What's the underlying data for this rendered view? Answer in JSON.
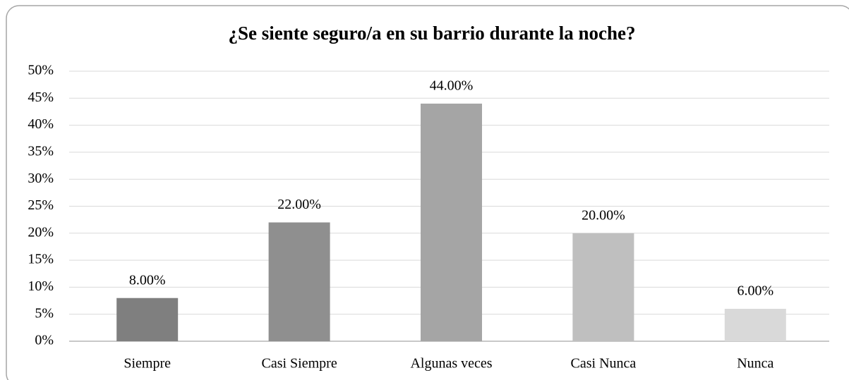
{
  "chart_data": {
    "type": "bar",
    "title": "¿Se siente seguro/a en su barrio durante la noche?",
    "categories": [
      "Siempre",
      "Casi Siempre",
      "Algunas veces",
      "Casi Nunca",
      "Nunca"
    ],
    "values": [
      8,
      22,
      44,
      20,
      6
    ],
    "value_labels": [
      "8.00%",
      "22.00%",
      "44.00%",
      "20.00%",
      "6.00%"
    ],
    "colors": [
      "#7f7f7f",
      "#8f8f8f",
      "#a5a5a5",
      "#bfbfbf",
      "#d9d9d9"
    ],
    "ylim": [
      0,
      50
    ],
    "yticks": [
      {
        "value": 0,
        "label": "0%"
      },
      {
        "value": 5,
        "label": "5%"
      },
      {
        "value": 10,
        "label": "10%"
      },
      {
        "value": 15,
        "label": "15%"
      },
      {
        "value": 20,
        "label": "20%"
      },
      {
        "value": 25,
        "label": "25%"
      },
      {
        "value": 30,
        "label": "30%"
      },
      {
        "value": 35,
        "label": "35%"
      },
      {
        "value": 40,
        "label": "40%"
      },
      {
        "value": 45,
        "label": "45%"
      },
      {
        "value": 50,
        "label": "50%"
      }
    ],
    "grid": true
  }
}
